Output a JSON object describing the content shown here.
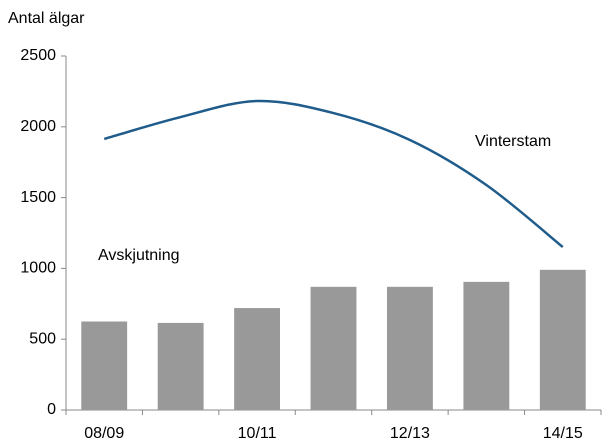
{
  "chart_data": {
    "type": "combo",
    "ylabel": "Antal älgar",
    "categories": [
      "08/09",
      null,
      "10/11",
      null,
      "12/13",
      null,
      "14/15"
    ],
    "series": [
      {
        "name": "Avskjutning",
        "type": "bar",
        "color": "#999999",
        "values": [
          625,
          615,
          720,
          870,
          870,
          905,
          990
        ]
      },
      {
        "name": "Vinterstam",
        "type": "line",
        "color": "#1f5c8b",
        "values": [
          1914,
          2069,
          2182,
          2097,
          1907,
          1589,
          1151
        ]
      }
    ],
    "ylim": [
      0,
      2500
    ],
    "yticks": [
      0,
      500,
      1000,
      1500,
      2000,
      2500
    ],
    "grid": false
  }
}
